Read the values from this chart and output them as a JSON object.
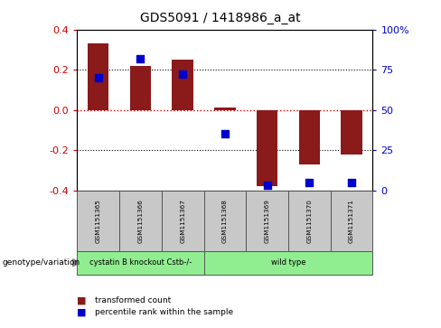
{
  "title": "GDS5091 / 1418986_a_at",
  "samples": [
    "GSM1151365",
    "GSM1151366",
    "GSM1151367",
    "GSM1151368",
    "GSM1151369",
    "GSM1151370",
    "GSM1151371"
  ],
  "transformed_counts": [
    0.33,
    0.22,
    0.25,
    0.01,
    -0.38,
    -0.27,
    -0.22
  ],
  "percentile_ranks": [
    70,
    82,
    72,
    35,
    3,
    5,
    5
  ],
  "ylim": [
    -0.4,
    0.4
  ],
  "yticks_left": [
    -0.4,
    -0.2,
    0.0,
    0.2,
    0.4
  ],
  "yticks_right": [
    0,
    25,
    50,
    75,
    100
  ],
  "bar_color": "#8B1A1A",
  "dot_color": "#0000CD",
  "group_labels": [
    "cystatin B knockout Cstb-/-",
    "wild type"
  ],
  "group_ranges": [
    [
      0,
      3
    ],
    [
      3,
      7
    ]
  ],
  "legend_items": [
    "transformed count",
    "percentile rank within the sample"
  ],
  "zero_line_color": "#CC0000",
  "dotted_line_color": "#000000",
  "bg_color": "#ffffff",
  "sample_box_color": "#C8C8C8",
  "group_color": "#90EE90"
}
